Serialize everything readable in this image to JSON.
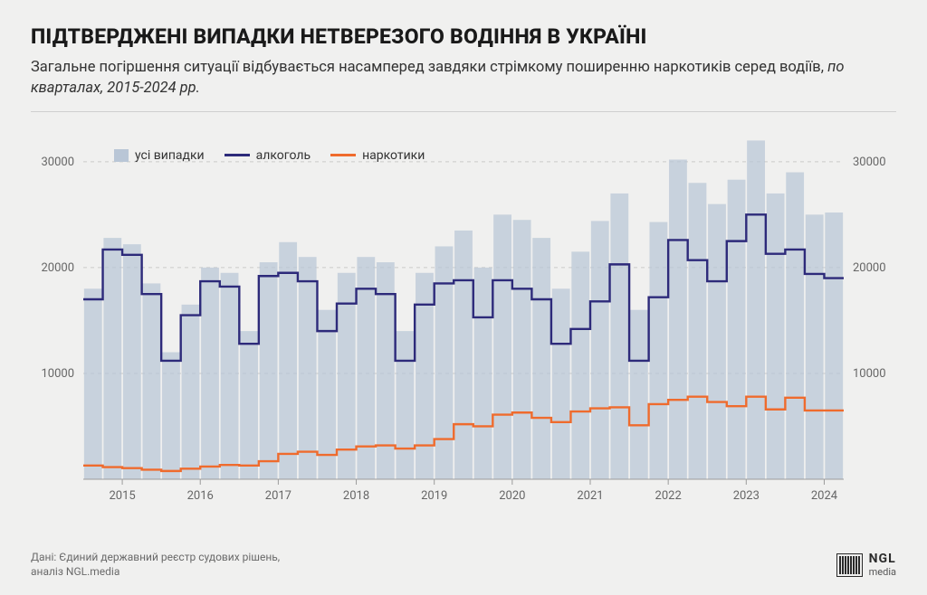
{
  "title": "ПІДТВЕРДЖЕНІ ВИПАДКИ НЕТВЕРЕЗОГО ВОДІННЯ В УКРАЇНІ",
  "subtitle_main": "Загальне погіршення ситуації відбувається насамперед завдяки стрімкому поширенню наркотиків серед водіїв, ",
  "subtitle_italic": "по кварталах, 2015-2024 рр.",
  "source_line1": "Дані: Єдиний державний реєстр судових рішень,",
  "source_line2": "аналіз NGL.media",
  "logo_main": "NGL",
  "logo_sub": "media",
  "legend": {
    "all": "усі випадки",
    "alcohol": "алкоголь",
    "drugs": "наркотики"
  },
  "chart": {
    "type": "bar+step",
    "background_color": "#f0f0ef",
    "bar_color": "#b9c6d6",
    "bar_opacity": 0.72,
    "alcohol_color": "#2d2a7a",
    "drugs_color": "#ef6b2d",
    "grid_color": "#c9c9c9",
    "baseline_color": "#9b9b9b",
    "text_color": "#666666",
    "title_fontsize": 23,
    "subtitle_fontsize": 16.5,
    "axis_fontsize": 13,
    "line_width": 2.4,
    "ylim": [
      0,
      34000
    ],
    "yticks": [
      10000,
      20000,
      30000
    ],
    "ytick_labels": [
      "10000",
      "20000",
      "30000"
    ],
    "years": [
      "2015",
      "2016",
      "2017",
      "2018",
      "2019",
      "2020",
      "2021",
      "2022",
      "2023",
      "2024"
    ],
    "quarters_per_year": 4,
    "n_quarters": 40,
    "all_cases": [
      18000,
      22800,
      22200,
      18500,
      12000,
      16500,
      20000,
      19500,
      14000,
      20500,
      22400,
      21000,
      16000,
      19500,
      21000,
      20500,
      14000,
      19500,
      22000,
      23500,
      20000,
      25000,
      24500,
      22800,
      18000,
      21500,
      24400,
      27000,
      16000,
      24300,
      30200,
      28000,
      26000,
      28300,
      32000,
      27000,
      29000,
      25000,
      25200,
      0
    ],
    "alcohol": [
      17000,
      21700,
      21200,
      17500,
      11200,
      15500,
      18700,
      18200,
      12800,
      19200,
      19500,
      18700,
      14000,
      16600,
      18000,
      17500,
      11200,
      16500,
      18500,
      18800,
      15300,
      18800,
      18000,
      17000,
      12800,
      14200,
      16800,
      20300,
      11200,
      17200,
      22600,
      20700,
      18700,
      22500,
      25000,
      21300,
      21700,
      19400,
      19000,
      0
    ],
    "drugs": [
      1300,
      1150,
      1050,
      900,
      780,
      1000,
      1200,
      1350,
      1300,
      1700,
      2400,
      2600,
      2300,
      2800,
      3100,
      3200,
      2900,
      3200,
      3800,
      5200,
      5000,
      6100,
      6300,
      5800,
      5400,
      6400,
      6700,
      6800,
      5100,
      7100,
      7500,
      7800,
      7300,
      6900,
      7800,
      6600,
      7700,
      6500,
      6500,
      0
    ]
  }
}
